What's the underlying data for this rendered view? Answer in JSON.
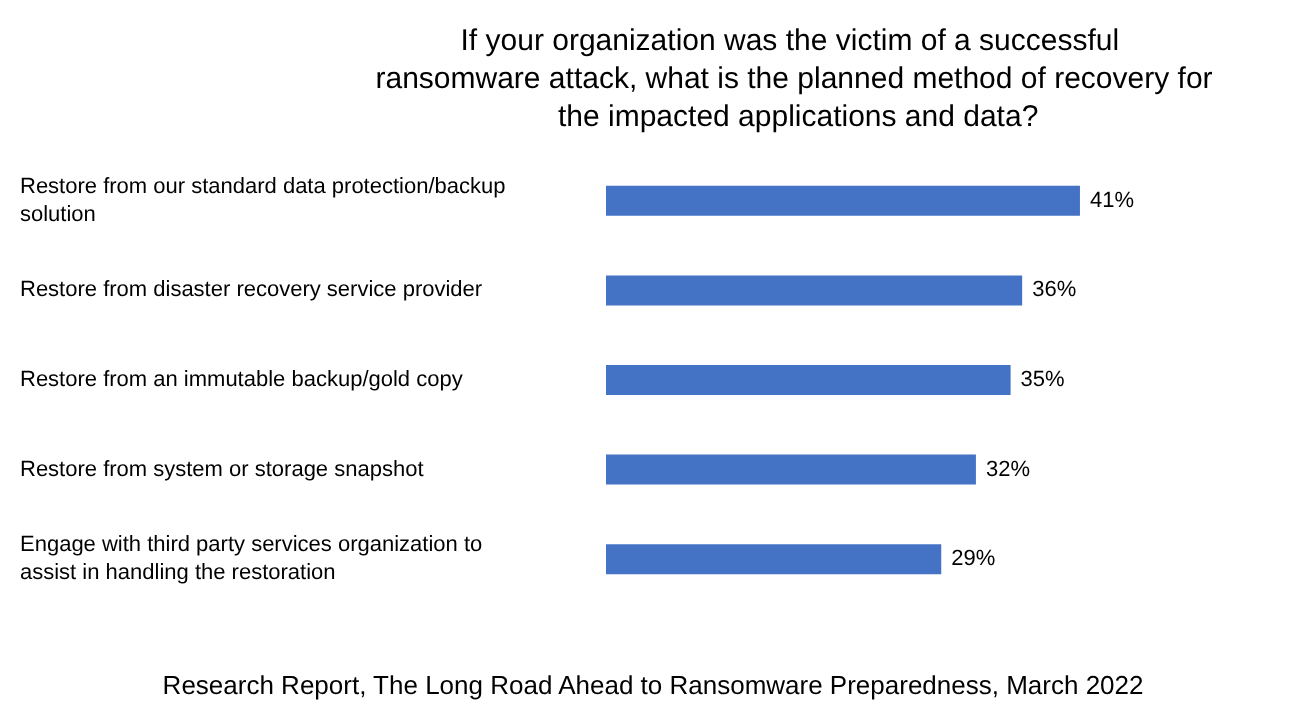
{
  "chart_data": {
    "type": "bar",
    "orientation": "horizontal",
    "title": "If your organization was the victim of a successful ransomware attack, what is the planned method of recovery for the impacted applications and data?",
    "categories": [
      "Restore from our standard data protection/backup solution",
      "Restore from disaster recovery service provider",
      "Restore from an immutable backup/gold copy",
      "Restore from system or storage snapshot",
      "Engage with third party services organization to assist in handling the restoration"
    ],
    "values": [
      41,
      36,
      35,
      32,
      29
    ],
    "value_labels": [
      "41%",
      "36%",
      "35%",
      "32%",
      "29%"
    ],
    "color": "#4472c4",
    "annotations": [
      "Research Report, The Long Road Ahead to Ransomware Preparedness, March 2022"
    ]
  }
}
